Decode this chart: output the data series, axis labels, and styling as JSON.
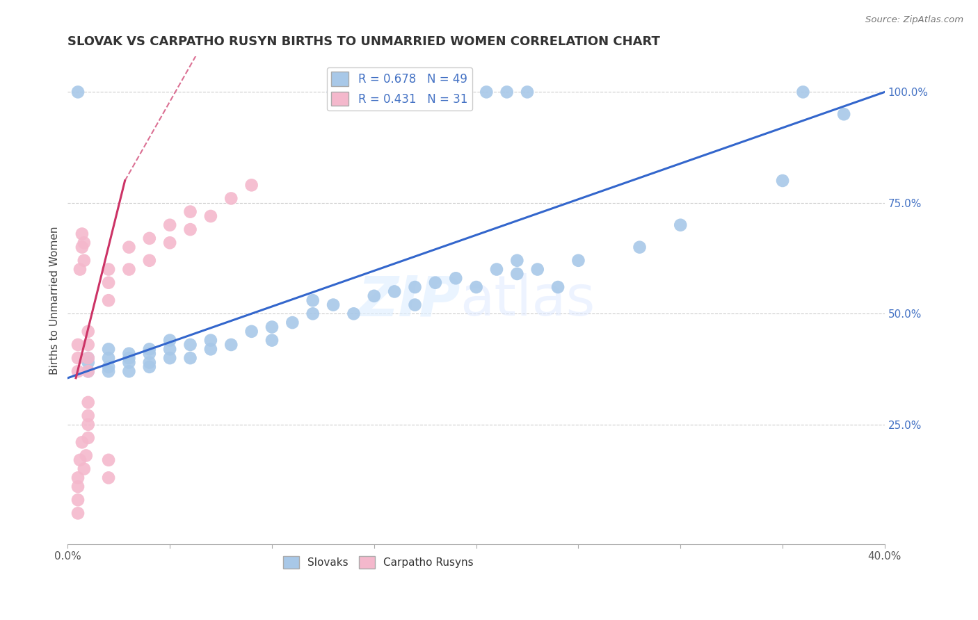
{
  "title": "SLOVAK VS CARPATHO RUSYN BIRTHS TO UNMARRIED WOMEN CORRELATION CHART",
  "source": "Source: ZipAtlas.com",
  "ylabel": "Births to Unmarried Women",
  "xlim": [
    0.0,
    0.4
  ],
  "ylim": [
    -0.02,
    1.08
  ],
  "xticks": [
    0.0,
    0.05,
    0.1,
    0.15,
    0.2,
    0.25,
    0.3,
    0.35,
    0.4
  ],
  "xticklabels": [
    "0.0%",
    "",
    "",
    "",
    "",
    "",
    "",
    "",
    "40.0%"
  ],
  "yticks_right": [
    0.25,
    0.5,
    0.75,
    1.0
  ],
  "ytick_right_labels": [
    "25.0%",
    "50.0%",
    "75.0%",
    "100.0%"
  ],
  "blue_color": "#a8c8e8",
  "pink_color": "#f4b8cc",
  "blue_line_color": "#3366cc",
  "pink_line_color": "#cc3366",
  "legend_R_blue": "R = 0.678",
  "legend_N_blue": "N = 49",
  "legend_R_pink": "R = 0.431",
  "legend_N_pink": "N = 31",
  "blue_scatter_x": [
    0.01,
    0.01,
    0.01,
    0.02,
    0.02,
    0.02,
    0.02,
    0.03,
    0.03,
    0.03,
    0.03,
    0.04,
    0.04,
    0.04,
    0.04,
    0.05,
    0.05,
    0.05,
    0.06,
    0.06,
    0.07,
    0.07,
    0.08,
    0.09,
    0.1,
    0.1,
    0.11,
    0.12,
    0.12,
    0.13,
    0.14,
    0.15,
    0.16,
    0.17,
    0.17,
    0.18,
    0.19,
    0.2,
    0.21,
    0.22,
    0.22,
    0.23,
    0.24,
    0.25,
    0.28,
    0.3,
    0.35,
    0.38
  ],
  "blue_scatter_y": [
    0.37,
    0.39,
    0.4,
    0.37,
    0.38,
    0.4,
    0.42,
    0.37,
    0.39,
    0.4,
    0.41,
    0.38,
    0.39,
    0.41,
    0.42,
    0.4,
    0.42,
    0.44,
    0.4,
    0.43,
    0.42,
    0.44,
    0.43,
    0.46,
    0.44,
    0.47,
    0.48,
    0.5,
    0.53,
    0.52,
    0.5,
    0.54,
    0.55,
    0.52,
    0.56,
    0.57,
    0.58,
    0.56,
    0.6,
    0.59,
    0.62,
    0.6,
    0.56,
    0.62,
    0.65,
    0.7,
    0.8,
    0.95
  ],
  "blue_top_x": [
    0.005,
    0.13,
    0.155,
    0.165,
    0.175,
    0.185,
    0.195,
    0.205,
    0.215,
    0.225,
    0.36
  ],
  "blue_top_y": [
    1.0,
    1.0,
    1.0,
    1.0,
    1.0,
    1.0,
    1.0,
    1.0,
    1.0,
    1.0,
    1.0
  ],
  "pink_scatter_x": [
    0.005,
    0.005,
    0.005,
    0.006,
    0.007,
    0.007,
    0.008,
    0.008,
    0.01,
    0.01,
    0.01,
    0.01,
    0.02,
    0.02,
    0.02,
    0.03,
    0.03,
    0.04,
    0.04,
    0.05,
    0.05,
    0.06,
    0.06,
    0.07,
    0.08,
    0.09
  ],
  "pink_scatter_y": [
    0.37,
    0.4,
    0.43,
    0.6,
    0.65,
    0.68,
    0.62,
    0.66,
    0.37,
    0.4,
    0.43,
    0.46,
    0.53,
    0.57,
    0.6,
    0.6,
    0.65,
    0.62,
    0.67,
    0.66,
    0.7,
    0.69,
    0.73,
    0.72,
    0.76,
    0.79
  ],
  "pink_low_x": [
    0.005,
    0.005,
    0.005,
    0.005,
    0.006,
    0.007,
    0.008,
    0.009,
    0.01,
    0.01,
    0.01,
    0.01,
    0.02,
    0.02
  ],
  "pink_low_y": [
    0.05,
    0.08,
    0.11,
    0.13,
    0.17,
    0.21,
    0.15,
    0.18,
    0.22,
    0.25,
    0.27,
    0.3,
    0.13,
    0.17
  ],
  "blue_line_x0": 0.0,
  "blue_line_y0": 0.355,
  "blue_line_x1": 0.4,
  "blue_line_y1": 1.0,
  "pink_line_solid_x0": 0.004,
  "pink_line_solid_y0": 0.355,
  "pink_line_solid_x1": 0.028,
  "pink_line_solid_y1": 0.8,
  "pink_line_dash_x0": 0.028,
  "pink_line_dash_y0": 0.8,
  "pink_line_dash_x1": 0.065,
  "pink_line_dash_y1": 1.1
}
